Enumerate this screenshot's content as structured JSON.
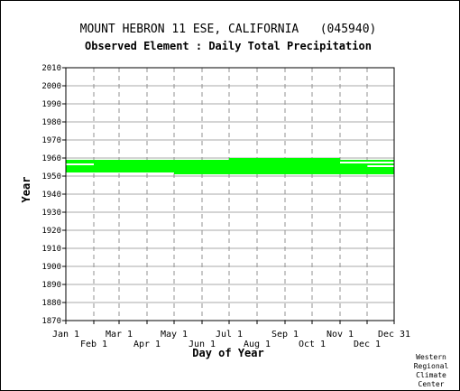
{
  "chart_data": {
    "type": "bar",
    "title": "MOUNT HEBRON 11 ESE, CALIFORNIA   (045940)",
    "subtitle": "Observed Element : Daily Total Precipitation",
    "xlabel": "Day of Year",
    "ylabel": "Year",
    "ylim": [
      1870,
      2010
    ],
    "xlim": [
      1,
      365
    ],
    "y_ticks": [
      1870,
      1880,
      1890,
      1900,
      1910,
      1920,
      1930,
      1940,
      1950,
      1960,
      1970,
      1980,
      1990,
      2000,
      2010
    ],
    "x_ticks_upper": [
      {
        "label": "Jan 1",
        "day": 1
      },
      {
        "label": "Mar 1",
        "day": 60
      },
      {
        "label": "May 1",
        "day": 121
      },
      {
        "label": "Jul 1",
        "day": 182
      },
      {
        "label": "Sep 1",
        "day": 244
      },
      {
        "label": "Nov 1",
        "day": 305
      },
      {
        "label": "Dec 31",
        "day": 365
      }
    ],
    "x_ticks_lower": [
      {
        "label": "Feb 1",
        "day": 32
      },
      {
        "label": "Apr 1",
        "day": 91
      },
      {
        "label": "Jun 1",
        "day": 152
      },
      {
        "label": "Aug 1",
        "day": 213
      },
      {
        "label": "Oct 1",
        "day": 274
      },
      {
        "label": "Dec 1",
        "day": 335
      }
    ],
    "grid": true,
    "data_color": "#00ff00",
    "coverage": [
      {
        "year": 1951,
        "start_day": 121,
        "end_day": 365
      },
      {
        "year": 1952,
        "start_day": 1,
        "end_day": 365
      },
      {
        "year": 1953,
        "start_day": 1,
        "end_day": 365
      },
      {
        "year": 1954,
        "start_day": 1,
        "end_day": 365
      },
      {
        "year": 1955,
        "start_day": 1,
        "end_day": 335
      },
      {
        "year": 1956,
        "start_day": 32,
        "end_day": 365
      },
      {
        "year": 1957,
        "start_day": 1,
        "end_day": 305
      },
      {
        "year": 1958,
        "start_day": 1,
        "end_day": 365
      },
      {
        "year": 1959,
        "start_day": 182,
        "end_day": 305
      }
    ]
  },
  "credit": [
    "Western",
    "Regional",
    "Climate",
    "Center"
  ]
}
